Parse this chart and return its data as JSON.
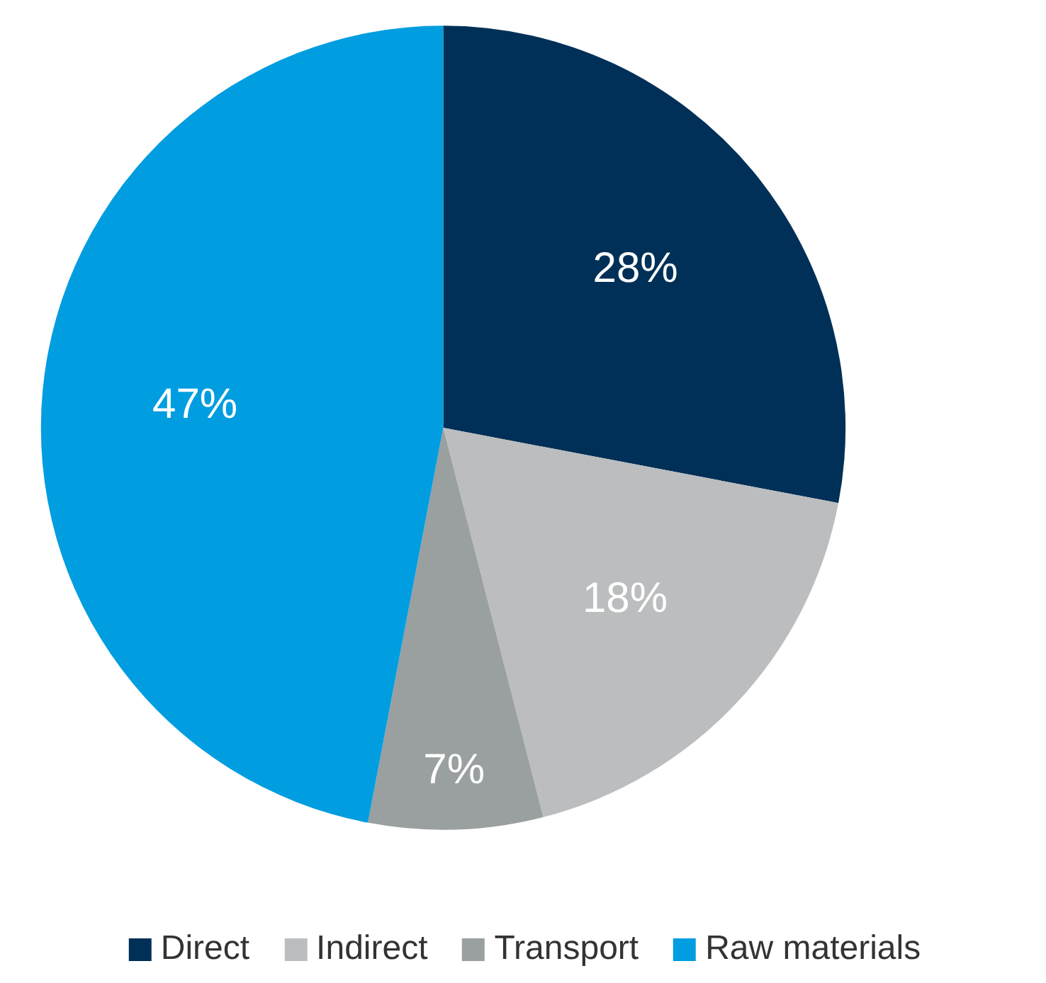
{
  "chart_data": {
    "type": "pie",
    "categories": [
      "Direct",
      "Indirect",
      "Transport",
      "Raw materials"
    ],
    "values": [
      28,
      18,
      7,
      47
    ],
    "colors": [
      "#003057",
      "#bbbdbf",
      "#9a9fa0",
      "#009de0"
    ],
    "value_labels": [
      "28%",
      "18%",
      "7%",
      "47%"
    ],
    "legend": "bottom"
  }
}
